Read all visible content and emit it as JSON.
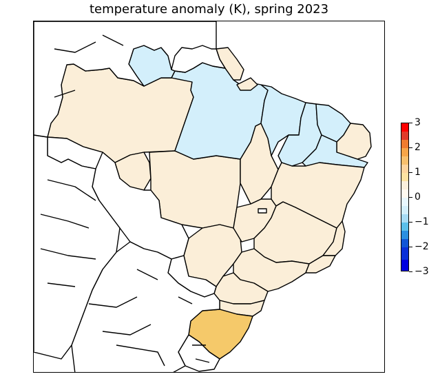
{
  "title": "temperature anomaly (K), spring 2023",
  "legend": {
    "ticks": [
      "3",
      "2",
      "1",
      "0",
      "−1",
      "−2",
      "−3"
    ],
    "colors": [
      "#fee8c8",
      "#fdd49e",
      "#f7c06d",
      "#fde2a1",
      "#fbf0dc",
      "#fffaf0",
      "#e8f7fd",
      "#d3effb",
      "#a7dcf4",
      "#5bbfe9",
      "#2a8fe0",
      "#1156d6",
      "#0000e0",
      "#ff0000",
      "#e03a2a",
      "#f07c2e",
      "#f6a548"
    ]
  },
  "map": {
    "region_fill": {
      "positive_small": "#fbeed8",
      "negative_small": "#d3effb",
      "positive_medium": "#f5c96a",
      "none": "#ffffff"
    },
    "border_color": "#000000"
  }
}
